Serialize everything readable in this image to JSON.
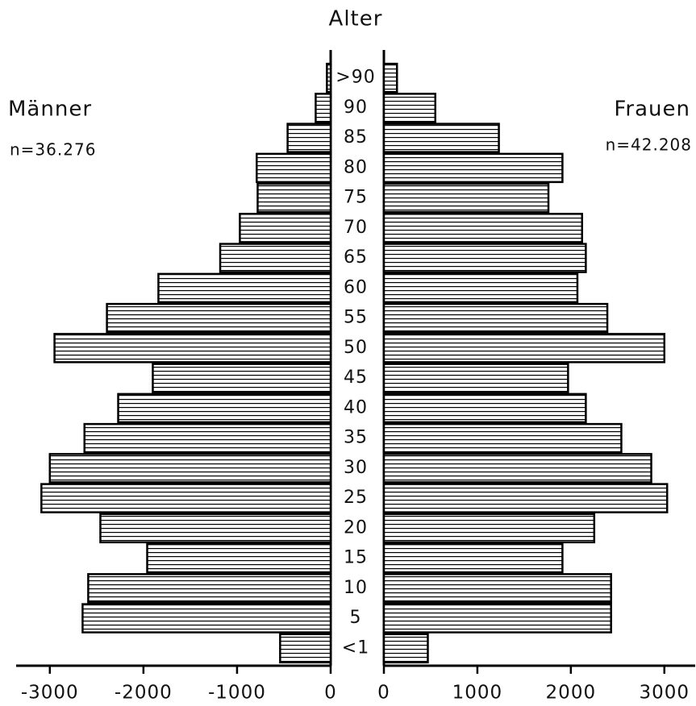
{
  "chart_data": {
    "type": "pyramid",
    "category_label": "Alter",
    "categories": [
      "<1",
      "5",
      "10",
      "15",
      "20",
      "25",
      "30",
      "35",
      "40",
      "45",
      "50",
      "55",
      "60",
      "65",
      "70",
      "75",
      "80",
      "85",
      "90",
      ">90"
    ],
    "series": [
      {
        "name": "Männer",
        "note": "n=36.276",
        "color": "#000000",
        "values": [
          -540,
          -2650,
          -2590,
          -1960,
          -2460,
          -3090,
          -3000,
          -2630,
          -2270,
          -1900,
          -2950,
          -2390,
          -1840,
          -1180,
          -970,
          -780,
          -790,
          -460,
          -160,
          -40
        ],
        "xlim": [
          -3360,
          0
        ],
        "xticks": [
          -3000,
          -2000,
          -1000,
          0
        ]
      },
      {
        "name": "Frauen",
        "note": "n=42.208",
        "color": "#000000",
        "values": [
          470,
          2430,
          2430,
          1910,
          2250,
          3030,
          2860,
          2540,
          2160,
          1970,
          3000,
          2390,
          2070,
          2160,
          2120,
          1760,
          1910,
          1230,
          550,
          140
        ],
        "xlim": [
          0,
          3330
        ],
        "xticks": [
          0,
          1000,
          2000,
          3000
        ]
      }
    ]
  }
}
